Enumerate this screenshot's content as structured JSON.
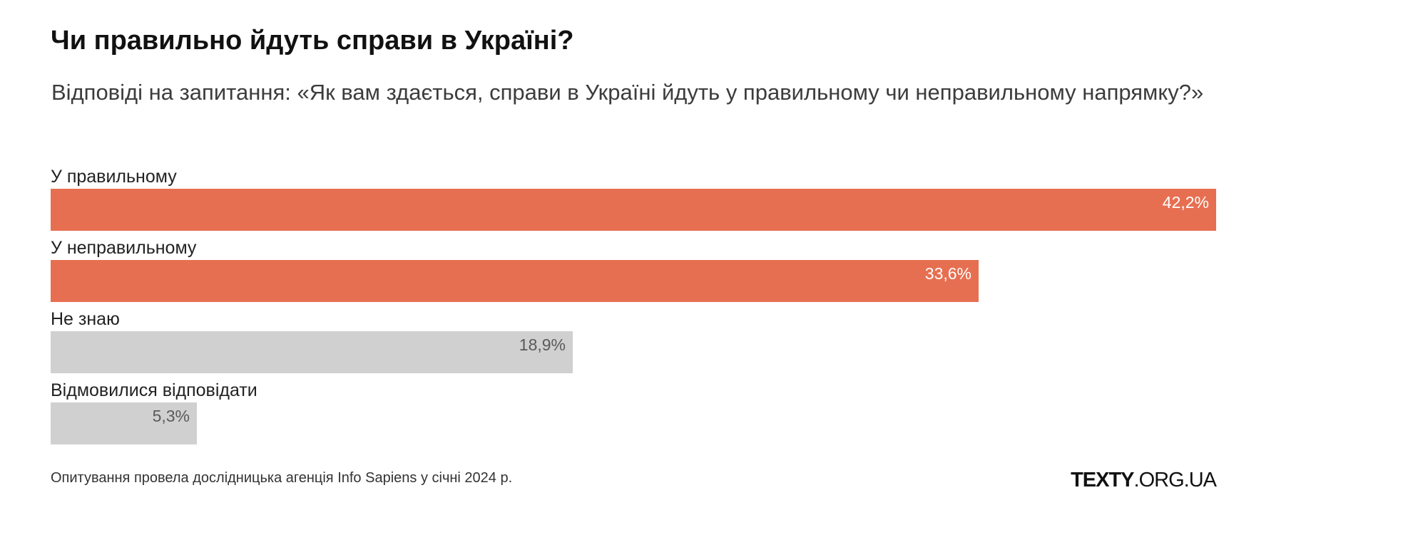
{
  "chart_data": {
    "type": "bar",
    "orientation": "horizontal",
    "title": "Чи правильно йдуть справи в Україні?",
    "subtitle": "Відповіді на запитання: «Як вам здається, справи в Україні йдуть у правильному чи неправильному напрямку?»",
    "categories": [
      "У правильному",
      "У неправильному",
      "Не знаю",
      "Відмовилися відповідати"
    ],
    "values": [
      42.2,
      33.6,
      18.9,
      5.3
    ],
    "value_labels": [
      "42,2%",
      "33,6%",
      "18,9%",
      "5,3%"
    ],
    "bar_colors": [
      "#e76f51",
      "#e76f51",
      "#d0d0d0",
      "#d0d0d0"
    ],
    "value_label_colors": [
      "#ffffff",
      "#ffffff",
      "#5a5a5a",
      "#5a5a5a"
    ],
    "unit": "%",
    "xlim": [
      0,
      42.2
    ],
    "grid": false,
    "legend": "none"
  },
  "footnote": "Опитування провела дослідницька агенція Info Sapiens у січні 2024 р.",
  "logo": {
    "strong": "TEXTY",
    "rest": ".ORG.UA"
  }
}
